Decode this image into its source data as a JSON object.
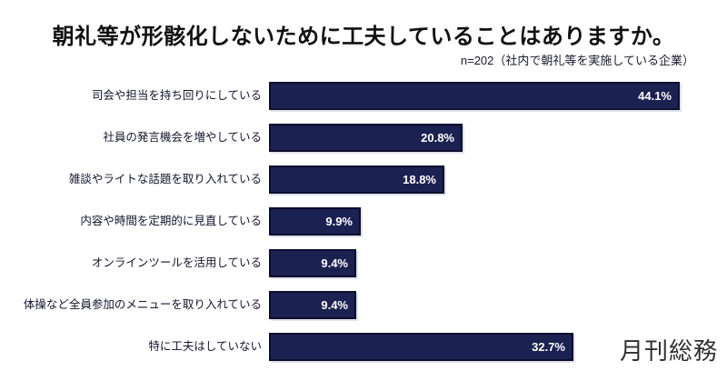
{
  "header": {
    "title": "朝礼等が形骸化しないために工夫していることはありますか。",
    "subtitle": "n=202（社内で朝礼等を実施している企業）"
  },
  "footer": {
    "logo_text": "月刊総務"
  },
  "chart_data": {
    "type": "bar",
    "orientation": "horizontal",
    "title": "朝礼等が形骸化しないために工夫していることはありますか。",
    "subtitle": "n=202（社内で朝礼等を実施している企業）",
    "categories": [
      "司会や担当を持ち回りにしている",
      "社員の発言機会を増やしている",
      "雑談やライトな話題を取り入れている",
      "内容や時間を定期的に見直している",
      "オンラインツールを活用している",
      "体操など全員参加のメニューを取り入れている",
      "特に工夫はしていない"
    ],
    "values": [
      44.1,
      20.8,
      18.8,
      9.9,
      9.4,
      9.4,
      32.7
    ],
    "labels": [
      "44.1%",
      "20.8%",
      "18.8%",
      "9.9%",
      "9.4%",
      "9.4%",
      "32.7%"
    ],
    "value_label_position": "inside-end",
    "xlabel": "",
    "ylabel": "",
    "xlim": [
      0,
      45
    ],
    "grid": false,
    "legend": false,
    "bar_color": "#1b2150",
    "bar_border_color": "#0c0f2d",
    "value_label_color": "#ffffff",
    "category_label_color": "#14142e",
    "background_color": "#ffffff"
  }
}
